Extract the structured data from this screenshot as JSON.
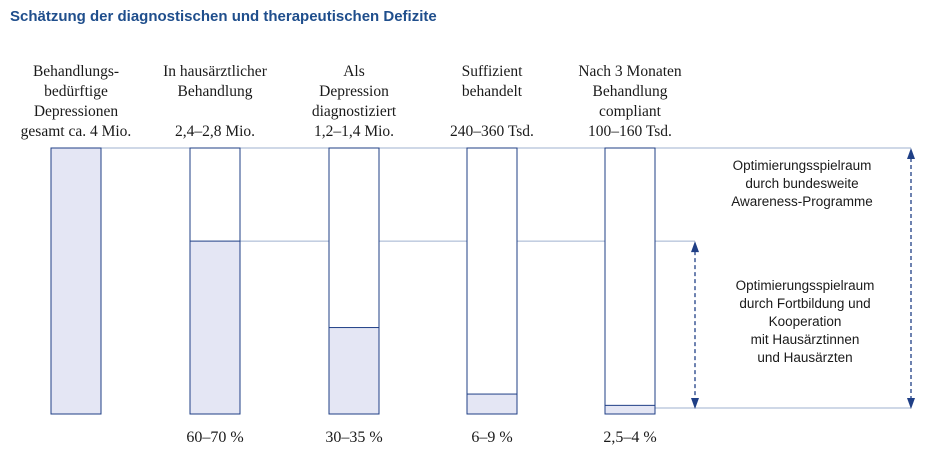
{
  "chart_data": {
    "type": "bar",
    "title": "Schätzung der diagnostischen und therapeutischen Defizite",
    "categories": [
      {
        "lines": [
          "Behandlungs-",
          "bedürftige",
          "Depressionen",
          "gesamt ca. 4 Mio."
        ]
      },
      {
        "lines": [
          "In hausärztlicher",
          "Behandlung",
          "",
          "2,4–2,8 Mio."
        ]
      },
      {
        "lines": [
          "Als",
          "Depression",
          "diagnostiziert",
          "1,2–1,4 Mio."
        ]
      },
      {
        "lines": [
          "Suffizient",
          "behandelt",
          "",
          "240–360 Tsd."
        ]
      },
      {
        "lines": [
          "Nach 3 Monaten",
          "Behandlung",
          "compliant",
          "100–160 Tsd."
        ]
      }
    ],
    "series": [
      {
        "values": [
          100,
          65,
          32.5,
          7.5,
          3.25
        ]
      }
    ],
    "value_labels": [
      "",
      "60–70 %",
      "30–35 %",
      "6–9 %",
      "2,5–4 %"
    ],
    "ylim": [
      0,
      100
    ],
    "annotations": [
      {
        "lines": [
          "Optimierungsspielraum",
          "durch bundesweite",
          "Awareness-Programme"
        ],
        "from": 100,
        "to": 0
      },
      {
        "lines": [
          "Optimierungsspielraum",
          "durch Fortbildung und",
          "Kooperation",
          "mit Hausärztinnen",
          "und Hausärzten"
        ],
        "from": 65,
        "to": 0
      }
    ],
    "grid": false,
    "legend": "none",
    "colors": {
      "bar_fill": "#e4e6f4",
      "bar_stroke": "#1f3f86",
      "guide": "#9fb0cf",
      "arrow": "#1f3f86",
      "title": "#1f4e8c"
    }
  }
}
